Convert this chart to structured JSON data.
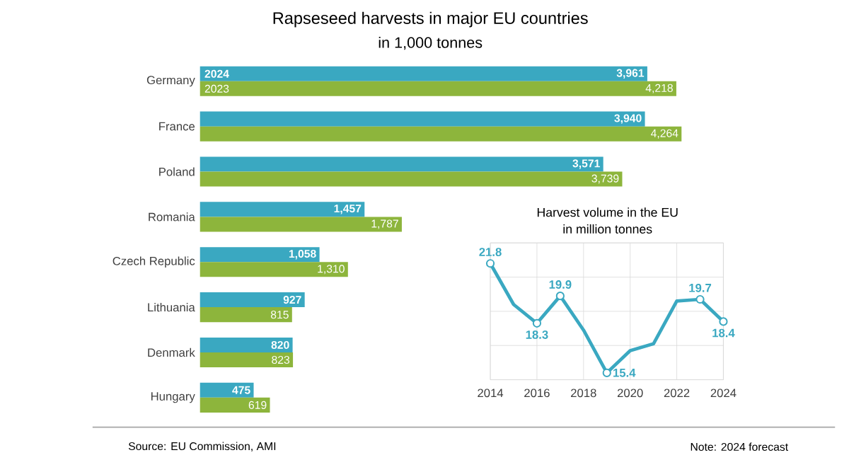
{
  "chart_data": [
    {
      "type": "bar",
      "orientation": "horizontal",
      "title": "Rapseseed harvests in major EU countries",
      "subtitle": "in 1,000 tonnes",
      "categories": [
        "Germany",
        "France",
        "Poland",
        "Romania",
        "Czech Republic",
        "Lithuania",
        "Denmark",
        "Hungary"
      ],
      "series": [
        {
          "name": "2024",
          "color": "#3aa8c1",
          "values": [
            3961,
            3940,
            3571,
            1457,
            1058,
            927,
            820,
            475
          ],
          "value_labels": [
            "3,961",
            "3,940",
            "3,571",
            "1,457",
            "1,058",
            "927",
            "820",
            "475"
          ]
        },
        {
          "name": "2023",
          "color": "#8db53c",
          "values": [
            4218,
            4264,
            3739,
            1787,
            1310,
            815,
            823,
            619
          ],
          "value_labels": [
            "4,218",
            "4,264",
            "3,739",
            "1,787",
            "1,310",
            "815",
            "823",
            "619"
          ]
        }
      ],
      "legend": false,
      "annotations": [
        "Source:  EU Commission, AMI",
        "Note: 2024 forecast"
      ]
    },
    {
      "type": "line",
      "title": "Harvest volume in the EU",
      "subtitle": "in million tonnes",
      "x": [
        2014,
        2015,
        2016,
        2017,
        2018,
        2019,
        2020,
        2021,
        2022,
        2023,
        2024
      ],
      "series": [
        {
          "color": "#3aa8c1",
          "values": [
            21.8,
            19.4,
            18.3,
            19.9,
            17.9,
            15.4,
            16.7,
            17.1,
            19.6,
            19.7,
            18.4
          ],
          "value_labels": [
            "21.8",
            null,
            "18.3",
            "19.9",
            null,
            "15.4",
            null,
            null,
            null,
            "19.7",
            "18.4"
          ]
        }
      ],
      "xlim": [
        2014,
        2024
      ],
      "xticks": [
        2014,
        2016,
        2018,
        2020,
        2022,
        2024
      ],
      "ylim": [
        15,
        23
      ],
      "yticks": [
        {
          "value": 15,
          "label": null
        },
        {
          "value": 17,
          "label": null
        },
        {
          "value": 19,
          "label": null
        },
        {
          "value": 21,
          "label": null
        },
        {
          "value": 23,
          "label": null
        }
      ],
      "grid": true,
      "marker": "circle",
      "tick_labels": "x"
    }
  ]
}
